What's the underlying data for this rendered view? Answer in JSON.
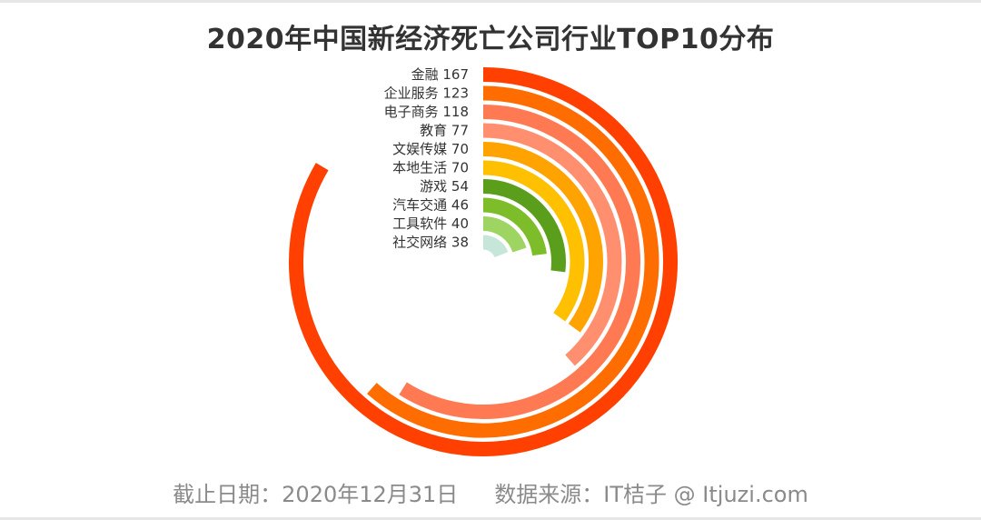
{
  "title": "2020年中国新经济死亡公司行业TOP10分布",
  "footer": {
    "date_text": "截止日期：2020年12月31日",
    "source_text": "数据来源：IT桔子 @ Itjuzi.com"
  },
  "chart_data": {
    "type": "radial-bar",
    "title": "2020年中国新经济死亡公司行业TOP10分布",
    "categories": [
      "金融",
      "企业服务",
      "电子商务",
      "教育",
      "文娱传媒",
      "本地生活",
      "游戏",
      "汽车交通",
      "工具软件",
      "社交网络"
    ],
    "values": [
      167,
      123,
      118,
      77,
      70,
      70,
      54,
      46,
      40,
      38
    ],
    "label_texts": [
      "金融 167",
      "企业服务 123",
      "电子商务 118",
      "教育 77",
      "文娱传媒 70",
      "本地生活 70",
      "游戏 54",
      "汽车交通 46",
      "工具软件 40",
      "社交网络 38"
    ],
    "colors": [
      "#ff4000",
      "#ff6c00",
      "#ff7a52",
      "#ff8f6e",
      "#ffa300",
      "#ffc000",
      "#5a9e1c",
      "#7ebd2a",
      "#9ed562",
      "#c7e6da"
    ],
    "max_value": 200
  }
}
